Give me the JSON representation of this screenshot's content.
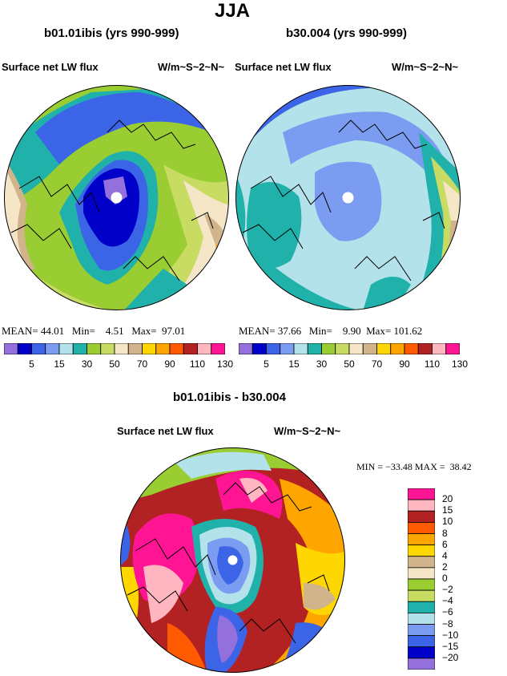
{
  "title": "JJA",
  "panels": [
    {
      "case": "b01.01ibis (yrs 990-999)",
      "variable": "Surface net LW flux",
      "units": "W/m~S~2~N~",
      "stats": {
        "mean": "44.01",
        "min": "4.51",
        "max": "97.01"
      }
    },
    {
      "case": "b30.004 (yrs 990-999)",
      "variable": "Surface net LW flux",
      "units": "W/m~S~2~N~",
      "stats": {
        "mean": "37.66",
        "min": "9.90",
        "max": "101.62"
      }
    }
  ],
  "stat_labels": {
    "mean": "MEAN=",
    "min": "Min=",
    "max": "Max="
  },
  "colorbar_top": {
    "colors": [
      "#9370db",
      "#0000c8",
      "#3c64e6",
      "#7b9cf0",
      "#b4e2ea",
      "#20b2aa",
      "#9acd32",
      "#c8dc64",
      "#f5e6c8",
      "#d2b48c",
      "#ffd700",
      "#ffa500",
      "#ff5a00",
      "#b22222",
      "#ffb6c1",
      "#ff1493"
    ],
    "labels": [
      "5",
      "15",
      "30",
      "50",
      "70",
      "90",
      "110",
      "130"
    ]
  },
  "difference": {
    "title": "b01.01ibis - b30.004",
    "variable": "Surface net LW flux",
    "units": "W/m~S~2~N~",
    "min_label": "MIN =",
    "min_value": "−33.48",
    "max_label": "MAX =",
    "max_value": "38.42",
    "colorbar": {
      "colors": [
        "#ff1493",
        "#ffb6c1",
        "#b22222",
        "#ff5a00",
        "#ffa500",
        "#ffd700",
        "#d2b48c",
        "#f5e6c8",
        "#9acd32",
        "#c8dc64",
        "#20b2aa",
        "#b4e2ea",
        "#7b9cf0",
        "#3c64e6",
        "#0000c8",
        "#9370db"
      ],
      "labels": [
        "20",
        "15",
        "10",
        "8",
        "6",
        "4",
        "2",
        "0",
        "−2",
        "−4",
        "−6",
        "−8",
        "−10",
        "−15",
        "−20"
      ]
    }
  }
}
